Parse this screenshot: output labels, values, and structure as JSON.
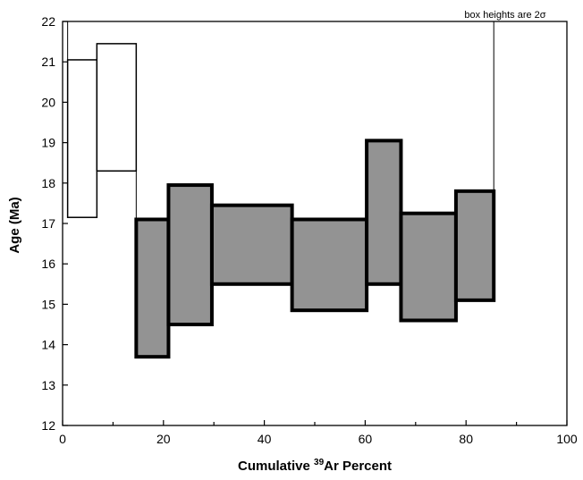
{
  "chart_data": {
    "type": "bar",
    "subtype": "age-spectrum",
    "title": "",
    "xlabel": "Cumulative 39Ar Percent",
    "xlabel_parts": {
      "prefix": "Cumulative ",
      "superscript": "39",
      "suffix": "Ar Percent"
    },
    "ylabel": "Age (Ma)",
    "xlim": [
      0,
      100
    ],
    "ylim": [
      12,
      22
    ],
    "x_ticks": [
      0,
      20,
      40,
      60,
      80,
      100
    ],
    "y_ticks": [
      12,
      13,
      14,
      15,
      16,
      17,
      18,
      19,
      20,
      21,
      22
    ],
    "grid": false,
    "annotation": "box heights are 2σ",
    "annotation_line_x": 85.5,
    "colors": {
      "included_fill": "#939393",
      "excluded_fill": "#ffffff",
      "stroke": "#000000"
    },
    "steps": [
      {
        "x_start": 1.0,
        "x_end": 6.8,
        "age_low": 17.15,
        "age_high": 21.05,
        "included": false
      },
      {
        "x_start": 6.8,
        "x_end": 14.6,
        "age_low": 18.3,
        "age_high": 21.45,
        "included": false
      },
      {
        "x_start": 14.6,
        "x_end": 21.0,
        "age_low": 13.7,
        "age_high": 17.1,
        "included": true
      },
      {
        "x_start": 21.0,
        "x_end": 29.6,
        "age_low": 14.5,
        "age_high": 17.95,
        "included": true
      },
      {
        "x_start": 29.6,
        "x_end": 45.5,
        "age_low": 15.5,
        "age_high": 17.45,
        "included": true
      },
      {
        "x_start": 45.5,
        "x_end": 60.3,
        "age_low": 14.85,
        "age_high": 17.1,
        "included": true
      },
      {
        "x_start": 60.3,
        "x_end": 67.1,
        "age_low": 15.5,
        "age_high": 19.05,
        "included": true
      },
      {
        "x_start": 67.1,
        "x_end": 78.0,
        "age_low": 14.6,
        "age_high": 17.25,
        "included": true
      },
      {
        "x_start": 78.0,
        "x_end": 85.5,
        "age_low": 15.1,
        "age_high": 17.8,
        "included": true
      }
    ]
  }
}
